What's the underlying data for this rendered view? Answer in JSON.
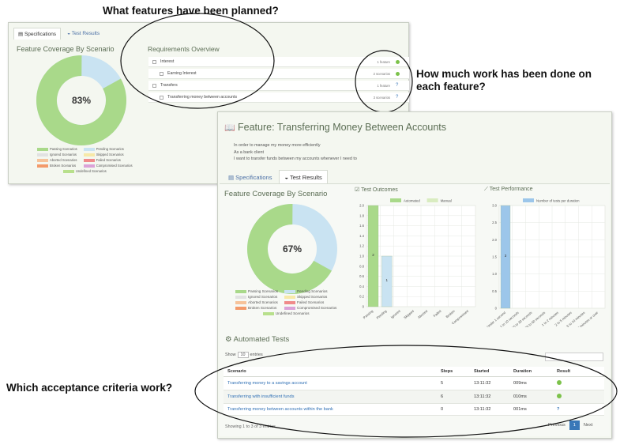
{
  "callouts": {
    "planned": "What features have been planned?",
    "work": "How much work has been done on each feature?",
    "criteria": "Which acceptance criteria work?"
  },
  "back_report": {
    "tabs": [
      "Specifications",
      "Test Results"
    ],
    "coverage_title": "Feature Coverage By Scenario",
    "coverage_percent": "83%",
    "coverage_fraction": 0.83,
    "legend": [
      {
        "label": "Passing Scenarios",
        "color": "#a9d98a"
      },
      {
        "label": "Pending Scenarios",
        "color": "#c9e3f2"
      },
      {
        "label": "Ignored Scenarios",
        "color": "#e2e2e2"
      },
      {
        "label": "Skipped Scenarios",
        "color": "#f7e9a8"
      },
      {
        "label": "Aborted Scenarios",
        "color": "#f6c39a"
      },
      {
        "label": "Failed Scenarios",
        "color": "#f08a8a"
      },
      {
        "label": "Broken Scenarios",
        "color": "#f39a6a"
      },
      {
        "label": "Compromised Scenarios",
        "color": "#dba2d8"
      },
      {
        "label": "Undefined Scenarios",
        "color": "#b8e08c"
      }
    ],
    "requirements_title": "Requirements Overview",
    "requirements": [
      {
        "label": "Interest",
        "count": "1 feature",
        "status": "passed",
        "indent": 0
      },
      {
        "label": "Earning Interest",
        "count": "2 scenarios",
        "status": "passed",
        "indent": 1
      },
      {
        "label": "Transfers",
        "count": "1 feature",
        "status": "pending",
        "indent": 0
      },
      {
        "label": "Transferring money between accounts",
        "count": "3 scenarios",
        "status": "pending",
        "indent": 1
      }
    ]
  },
  "front_report": {
    "feature_title": "Feature: Transferring Money Between Accounts",
    "narrative": [
      "In order to manage my money more efficiently",
      "As a bank client",
      "I want to transfer funds between my accounts whenever I need to"
    ],
    "tabs": [
      "Specifications",
      "Test Results"
    ],
    "coverage_title": "Feature Coverage By Scenario",
    "coverage_percent": "67%",
    "coverage_fraction": 0.67,
    "legend": [
      {
        "label": "Passing Scenarios",
        "color": "#a9d98a"
      },
      {
        "label": "Pending Scenarios",
        "color": "#c9e3f2"
      },
      {
        "label": "Ignored Scenarios",
        "color": "#e2e2e2"
      },
      {
        "label": "Skipped Scenarios",
        "color": "#f7e9a8"
      },
      {
        "label": "Aborted Scenarios",
        "color": "#f6c39a"
      },
      {
        "label": "Failed Scenarios",
        "color": "#f08a8a"
      },
      {
        "label": "Broken Scenarios",
        "color": "#f39a6a"
      },
      {
        "label": "Compromised Scenarios",
        "color": "#dba2d8"
      },
      {
        "label": "Undefined Scenarios",
        "color": "#b8e08c"
      }
    ],
    "automated_title": "Automated Tests",
    "show_label": "Show",
    "show_value": "10",
    "entries_label": "entries",
    "search_placeholder": "",
    "columns": [
      "Scenario",
      "Steps",
      "Started",
      "Duration",
      "Result"
    ],
    "rows": [
      {
        "scenario": "Transferring money to a savings account",
        "steps": "5",
        "started": "13:11:32",
        "duration": "009ms",
        "result": "passed"
      },
      {
        "scenario": "Transferring with insufficient funds",
        "steps": "6",
        "started": "13:11:32",
        "duration": "010ms",
        "result": "passed"
      },
      {
        "scenario": "Transferring money between accounts within the bank",
        "steps": "0",
        "started": "13:11:32",
        "duration": "001ms",
        "result": "pending"
      }
    ],
    "showing_text": "Showing 1 to 3 of 3 entries",
    "pager": {
      "previous": "Previous",
      "page": "1",
      "next": "Next"
    }
  },
  "chart_data": [
    {
      "type": "bar",
      "title": "Test Outcomes",
      "categories": [
        "Passing",
        "Pending",
        "Ignored",
        "Skipped",
        "Aborted",
        "Failed",
        "Broken",
        "Compromised"
      ],
      "series": [
        {
          "name": "Automated",
          "values": [
            2,
            1,
            0,
            0,
            0,
            0,
            0,
            0
          ],
          "color": "#a9d98a"
        },
        {
          "name": "Manual",
          "values": [
            0,
            0,
            0,
            0,
            0,
            0,
            0,
            0
          ],
          "color": "#d9ecc0"
        }
      ],
      "data_labels": [
        "2",
        "1"
      ],
      "ylim": [
        0,
        2
      ],
      "yticks": [
        "2.0",
        "1.8",
        "1.6",
        "1.4",
        "1.2",
        "1.0",
        "0.8",
        "0.6",
        "0.4",
        "0.2",
        "0"
      ],
      "grid": true,
      "legend": "top"
    },
    {
      "type": "bar",
      "title": "Test Performance",
      "categories": [
        "Under 1 second",
        "1 to 10 seconds",
        "10 to 30 seconds",
        "30 to 60 seconds",
        "1 to 2 minutes",
        "2 to 5 minutes",
        "5 to 10 minutes",
        "10 minutes or over"
      ],
      "series": [
        {
          "name": "Number of tests per duration",
          "values": [
            3,
            0,
            0,
            0,
            0,
            0,
            0,
            0
          ],
          "color": "#9cc6ea"
        }
      ],
      "data_labels": [
        "3"
      ],
      "ylim": [
        0,
        3
      ],
      "yticks": [
        "3.0",
        "2.5",
        "2.0",
        "1.5",
        "1.0",
        "0.5",
        "0"
      ],
      "grid": true,
      "legend": "top"
    }
  ]
}
